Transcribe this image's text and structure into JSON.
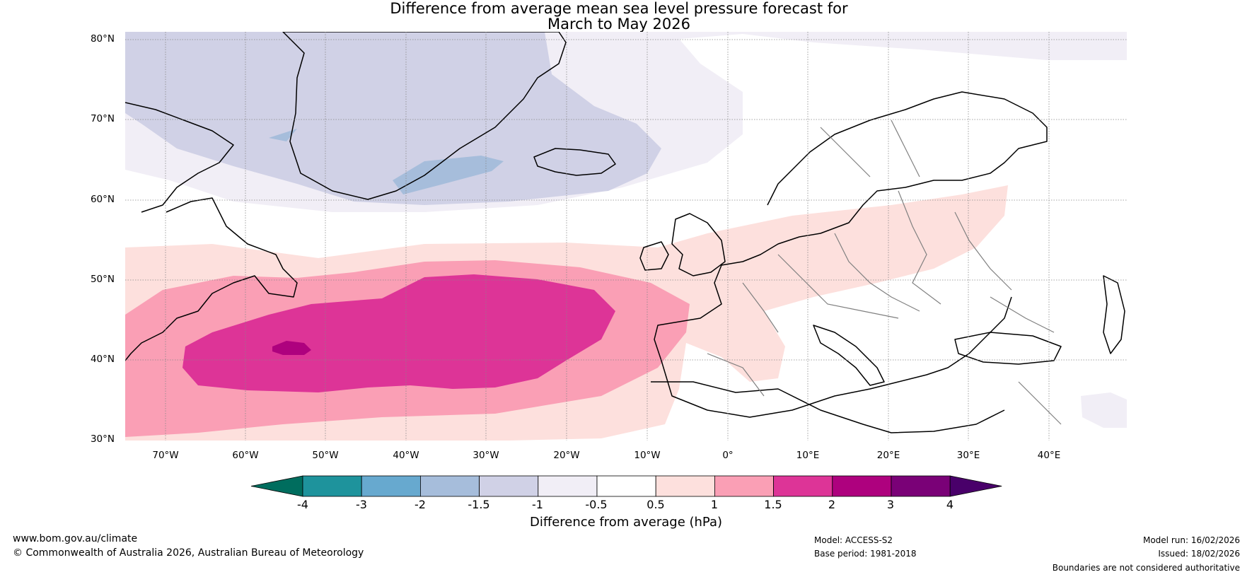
{
  "title": {
    "line1": "Difference from average mean sea level pressure forecast for",
    "line2": "March to May 2026"
  },
  "axes": {
    "lat_labels": [
      "80°N",
      "70°N",
      "60°N",
      "50°N",
      "40°N",
      "30°N"
    ],
    "lon_labels": [
      "70°W",
      "60°W",
      "50°W",
      "40°W",
      "30°W",
      "20°W",
      "10°W",
      "0°",
      "10°E",
      "20°E",
      "30°E",
      "40°E"
    ]
  },
  "colorbar": {
    "title": "Difference from average (hPa)",
    "ticks": [
      "-4",
      "-3",
      "-2",
      "-1.5",
      "-1",
      "-0.5",
      "0.5",
      "1",
      "1.5",
      "2",
      "3",
      "4"
    ],
    "colors": [
      "#006d5e",
      "#1e939c",
      "#67a9cf",
      "#a6bddb",
      "#d0d1e6",
      "#f1eef6",
      "#ffffff",
      "#fde0dd",
      "#fa9fb5",
      "#dd3497",
      "#ae017e",
      "#7a0177",
      "#49006a"
    ]
  },
  "map": {
    "ocean_land_color": "#ffffff",
    "coast_color": "#000000",
    "border_color": "#808080",
    "grid_color": "#888888"
  },
  "footer": {
    "website": "www.bom.gov.au/climate",
    "copyright": "© Commonwealth of Australia 2026, Australian Bureau of Meteorology",
    "model": "Model: ACCESS-S2",
    "base_period": "Base period: 1981-2018",
    "model_run": "Model run: 16/02/2026",
    "issued": "Issued: 18/02/2026",
    "disclaimer": "Boundaries are not considered authoritative"
  }
}
